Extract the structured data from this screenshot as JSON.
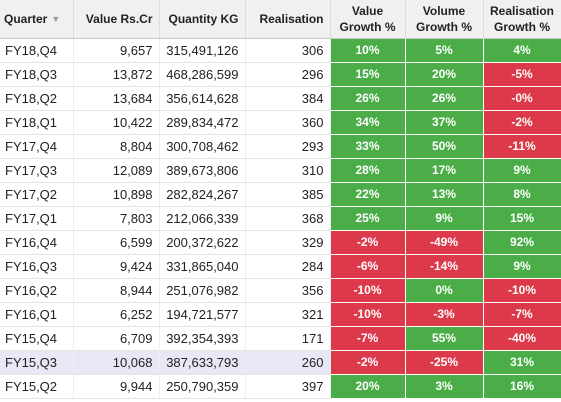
{
  "colors": {
    "positive": "#4aad48",
    "negative": "#dc3a4a",
    "selected_row": "#e7e7f5"
  },
  "table": {
    "headers": {
      "quarter": "Quarter",
      "quarter_sort_icon": "sort-descending-icon",
      "value": "Value Rs.Cr",
      "quantity": "Quantity KG",
      "realisation": "Realisation",
      "value_growth": {
        "line1": "Value",
        "line2": "Growth %"
      },
      "volume_growth": {
        "line1": "Volume",
        "line2": "Growth %"
      },
      "realisation_growth": {
        "line1": "Realisation",
        "line2": "Growth %"
      }
    },
    "selected_row_index": 13,
    "rows": [
      {
        "quarter": "FY18,Q4",
        "value": "9,657",
        "quantity": "315,491,126",
        "realisation": "306",
        "value_growth": "10%",
        "volume_growth": "5%",
        "realisation_growth": "4%"
      },
      {
        "quarter": "FY18,Q3",
        "value": "13,872",
        "quantity": "468,286,599",
        "realisation": "296",
        "value_growth": "15%",
        "volume_growth": "20%",
        "realisation_growth": "-5%"
      },
      {
        "quarter": "FY18,Q2",
        "value": "13,684",
        "quantity": "356,614,628",
        "realisation": "384",
        "value_growth": "26%",
        "volume_growth": "26%",
        "realisation_growth": "-0%"
      },
      {
        "quarter": "FY18,Q1",
        "value": "10,422",
        "quantity": "289,834,472",
        "realisation": "360",
        "value_growth": "34%",
        "volume_growth": "37%",
        "realisation_growth": "-2%"
      },
      {
        "quarter": "FY17,Q4",
        "value": "8,804",
        "quantity": "300,708,462",
        "realisation": "293",
        "value_growth": "33%",
        "volume_growth": "50%",
        "realisation_growth": "-11%"
      },
      {
        "quarter": "FY17,Q3",
        "value": "12,089",
        "quantity": "389,673,806",
        "realisation": "310",
        "value_growth": "28%",
        "volume_growth": "17%",
        "realisation_growth": "9%"
      },
      {
        "quarter": "FY17,Q2",
        "value": "10,898",
        "quantity": "282,824,267",
        "realisation": "385",
        "value_growth": "22%",
        "volume_growth": "13%",
        "realisation_growth": "8%"
      },
      {
        "quarter": "FY17,Q1",
        "value": "7,803",
        "quantity": "212,066,339",
        "realisation": "368",
        "value_growth": "25%",
        "volume_growth": "9%",
        "realisation_growth": "15%"
      },
      {
        "quarter": "FY16,Q4",
        "value": "6,599",
        "quantity": "200,372,622",
        "realisation": "329",
        "value_growth": "-2%",
        "volume_growth": "-49%",
        "realisation_growth": "92%"
      },
      {
        "quarter": "FY16,Q3",
        "value": "9,424",
        "quantity": "331,865,040",
        "realisation": "284",
        "value_growth": "-6%",
        "volume_growth": "-14%",
        "realisation_growth": "9%"
      },
      {
        "quarter": "FY16,Q2",
        "value": "8,944",
        "quantity": "251,076,982",
        "realisation": "356",
        "value_growth": "-10%",
        "volume_growth": "0%",
        "realisation_growth": "-10%"
      },
      {
        "quarter": "FY16,Q1",
        "value": "6,252",
        "quantity": "194,721,577",
        "realisation": "321",
        "value_growth": "-10%",
        "volume_growth": "-3%",
        "realisation_growth": "-7%"
      },
      {
        "quarter": "FY15,Q4",
        "value": "6,709",
        "quantity": "392,354,393",
        "realisation": "171",
        "value_growth": "-7%",
        "volume_growth": "55%",
        "realisation_growth": "-40%"
      },
      {
        "quarter": "FY15,Q3",
        "value": "10,068",
        "quantity": "387,633,793",
        "realisation": "260",
        "value_growth": "-2%",
        "volume_growth": "-25%",
        "realisation_growth": "31%"
      },
      {
        "quarter": "FY15,Q2",
        "value": "9,944",
        "quantity": "250,790,359",
        "realisation": "397",
        "value_growth": "20%",
        "volume_growth": "3%",
        "realisation_growth": "16%"
      }
    ]
  }
}
